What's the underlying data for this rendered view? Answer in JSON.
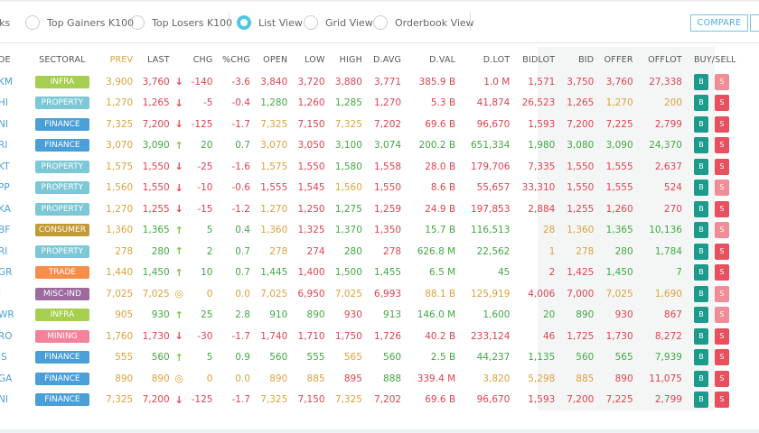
{
  "toolbar": {
    "radios": [
      {
        "label": "icks",
        "selected": false
      },
      {
        "label": "Top Gainers K100",
        "selected": false
      },
      {
        "label": "Top Losers K100",
        "selected": false
      },
      {
        "label": "List View",
        "selected": true
      },
      {
        "label": "Grid View",
        "selected": false
      },
      {
        "label": "Orderbook View",
        "selected": false
      }
    ],
    "compare_label": "COMPARE"
  },
  "columns": [
    "DE",
    "SECTORAL",
    "PREV",
    "LAST",
    "",
    "CHG",
    "%CHG",
    "OPEN",
    "LOW",
    "HIGH",
    "D.AVG",
    "D.VAL",
    "D.LOT",
    "BIDLOT",
    "BID",
    "OFFER",
    "OFFLOT",
    "BUY/SELL"
  ],
  "buy_label": "B",
  "sell_label": "S",
  "tone_colors": {
    "r": "#e0434f",
    "g": "#43a843",
    "o": "#dca23e"
  },
  "direction_icons": {
    "down": "arrow-down",
    "up": "arrow-up",
    "flat": "circle-dot"
  },
  "sector_colors": {
    "INFRA": "#a6cf4f",
    "PROPERTY": "#7cc8d6",
    "FINANCE": "#4a9fd8",
    "CONSUMER": "#c29a35",
    "TRADE": "#f98e4a",
    "MISC-IND": "#9c6a9e",
    "MINING": "#f5829a"
  },
  "rows": [
    {
      "code": "KM",
      "sector": "INFRA",
      "dir": "down",
      "sell_active": false,
      "values": [
        "3,900",
        "3,760",
        "-140",
        "-3.6",
        "3,840",
        "3,720",
        "3,880",
        "3,771",
        "385.9 B",
        "1.0 M",
        "1,571",
        "3,750",
        "3,760",
        "27,338"
      ],
      "tones": "orrrrrrrrrrrrr"
    },
    {
      "code": "HI",
      "sector": "PROPERTY",
      "dir": "down",
      "sell_active": true,
      "values": [
        "1,270",
        "1,265",
        "-5",
        "-0.4",
        "1,280",
        "1,260",
        "1,285",
        "1,270",
        "5.3 B",
        "41,874",
        "26,523",
        "1,265",
        "1,270",
        "200"
      ],
      "tones": "orrrgrgrrrrroo"
    },
    {
      "code": "NI",
      "sector": "FINANCE",
      "dir": "down",
      "sell_active": true,
      "values": [
        "7,325",
        "7,200",
        "-125",
        "-1.7",
        "7,325",
        "7,150",
        "7,325",
        "7,202",
        "69.6 B",
        "96,670",
        "1,593",
        "7,200",
        "7,225",
        "2,799"
      ],
      "tones": "orrrororrrrrrr"
    },
    {
      "code": "RI",
      "sector": "FINANCE",
      "dir": "up",
      "sell_active": true,
      "values": [
        "3,070",
        "3,090",
        "20",
        "0.7",
        "3,070",
        "3,050",
        "3,100",
        "3,074",
        "200.2 B",
        "651,334",
        "1,980",
        "3,080",
        "3,090",
        "24,370"
      ],
      "tones": "ogggorgggggggg"
    },
    {
      "code": "KT",
      "sector": "PROPERTY",
      "dir": "down",
      "sell_active": true,
      "values": [
        "1,575",
        "1,550",
        "-25",
        "-1.6",
        "1,575",
        "1,550",
        "1,580",
        "1,558",
        "28.0 B",
        "179,706",
        "7,335",
        "1,550",
        "1,555",
        "2,637"
      ],
      "tones": "orrrorgrrrrrrr"
    },
    {
      "code": "PP",
      "sector": "PROPERTY",
      "dir": "down",
      "sell_active": false,
      "values": [
        "1,560",
        "1,550",
        "-10",
        "-0.6",
        "1,555",
        "1,545",
        "1,560",
        "1,550",
        "8.6 B",
        "55,657",
        "33,310",
        "1,550",
        "1,555",
        "524"
      ],
      "tones": "orrrrrorrrrrrr"
    },
    {
      "code": "KA",
      "sector": "PROPERTY",
      "dir": "down",
      "sell_active": true,
      "values": [
        "1,270",
        "1,255",
        "-15",
        "-1.2",
        "1,270",
        "1,250",
        "1,275",
        "1,259",
        "24.9 B",
        "197,853",
        "2,884",
        "1,255",
        "1,260",
        "270"
      ],
      "tones": "orrrorgrrrrrrr"
    },
    {
      "code": "BF",
      "sector": "CONSUMER",
      "dir": "up",
      "sell_active": false,
      "values": [
        "1,360",
        "1,365",
        "5",
        "0.4",
        "1,360",
        "1,325",
        "1,370",
        "1,350",
        "15.7 B",
        "116,513",
        "28",
        "1,360",
        "1,365",
        "10,136"
      ],
      "tones": "ogggorgrggoogg"
    },
    {
      "code": "RI",
      "sector": "PROPERTY",
      "dir": "up",
      "sell_active": true,
      "values": [
        "278",
        "280",
        "2",
        "0.7",
        "278",
        "274",
        "280",
        "278",
        "626.8 M",
        "22,562",
        "1",
        "278",
        "280",
        "1,784"
      ],
      "tones": "ogggorgrggoogg"
    },
    {
      "code": "GR",
      "sector": "TRADE",
      "dir": "up",
      "sell_active": true,
      "values": [
        "1,440",
        "1,450",
        "10",
        "0.7",
        "1,445",
        "1,400",
        "1,500",
        "1,455",
        "6.5 M",
        "45",
        "2",
        "1,425",
        "1,450",
        "7"
      ],
      "tones": "ogggg rgggg rrgg"
    },
    {
      "code": "I",
      "sector": "MISC-IND",
      "dir": "flat",
      "sell_active": false,
      "values": [
        "7,025",
        "7,025",
        "0",
        "0.0",
        "7,025",
        "6,950",
        "7,025",
        "6,993",
        "88.1 B",
        "125,919",
        "4,006",
        "7,000",
        "7,025",
        "1,690"
      ],
      "tones": "ooooororoorroo"
    },
    {
      "code": "WR",
      "sector": "INFRA",
      "dir": "up",
      "sell_active": false,
      "values": [
        "905",
        "930",
        "25",
        "2.8",
        "910",
        "890",
        "930",
        "913",
        "146.0 M",
        "1,600",
        "20",
        "890",
        "930",
        "867"
      ],
      "tones": "ogggggrgggggrrgg"
    },
    {
      "code": "RO",
      "sector": "MINING",
      "dir": "down",
      "sell_active": true,
      "values": [
        "1,760",
        "1,730",
        "-30",
        "-1.7",
        "1,740",
        "1,710",
        "1,750",
        "1,726",
        "40.2 B",
        "233,124",
        "46",
        "1,725",
        "1,730",
        "8,272"
      ],
      "tones": "orrrrrrrrrrrrr"
    },
    {
      "code": "IS",
      "sector": "FINANCE",
      "dir": "up",
      "sell_active": true,
      "values": [
        "555",
        "560",
        "5",
        "0.9",
        "560",
        "555",
        "565",
        "560",
        "2.5 B",
        "44,237",
        "1,135",
        "560",
        "565",
        "7,939"
      ],
      "tones": "ogggggogggggggg"
    },
    {
      "code": "GA",
      "sector": "FINANCE",
      "dir": "flat",
      "sell_active": true,
      "values": [
        "890",
        "890",
        "0",
        "0.0",
        "890",
        "885",
        "895",
        "888",
        "339.4 M",
        "3,820",
        "5,298",
        "885",
        "890",
        "11,075"
      ],
      "tones": "oooooorgrooorroo"
    },
    {
      "code": "NI",
      "sector": "FINANCE",
      "dir": "down",
      "sell_active": true,
      "values": [
        "7,325",
        "7,200",
        "-125",
        "-1.7",
        "7,325",
        "7,150",
        "7,325",
        "7,202",
        "69.6 B",
        "96,670",
        "1,593",
        "7,200",
        "7,225",
        "2,799"
      ],
      "tones": "orrrororrrrrrr"
    }
  ]
}
